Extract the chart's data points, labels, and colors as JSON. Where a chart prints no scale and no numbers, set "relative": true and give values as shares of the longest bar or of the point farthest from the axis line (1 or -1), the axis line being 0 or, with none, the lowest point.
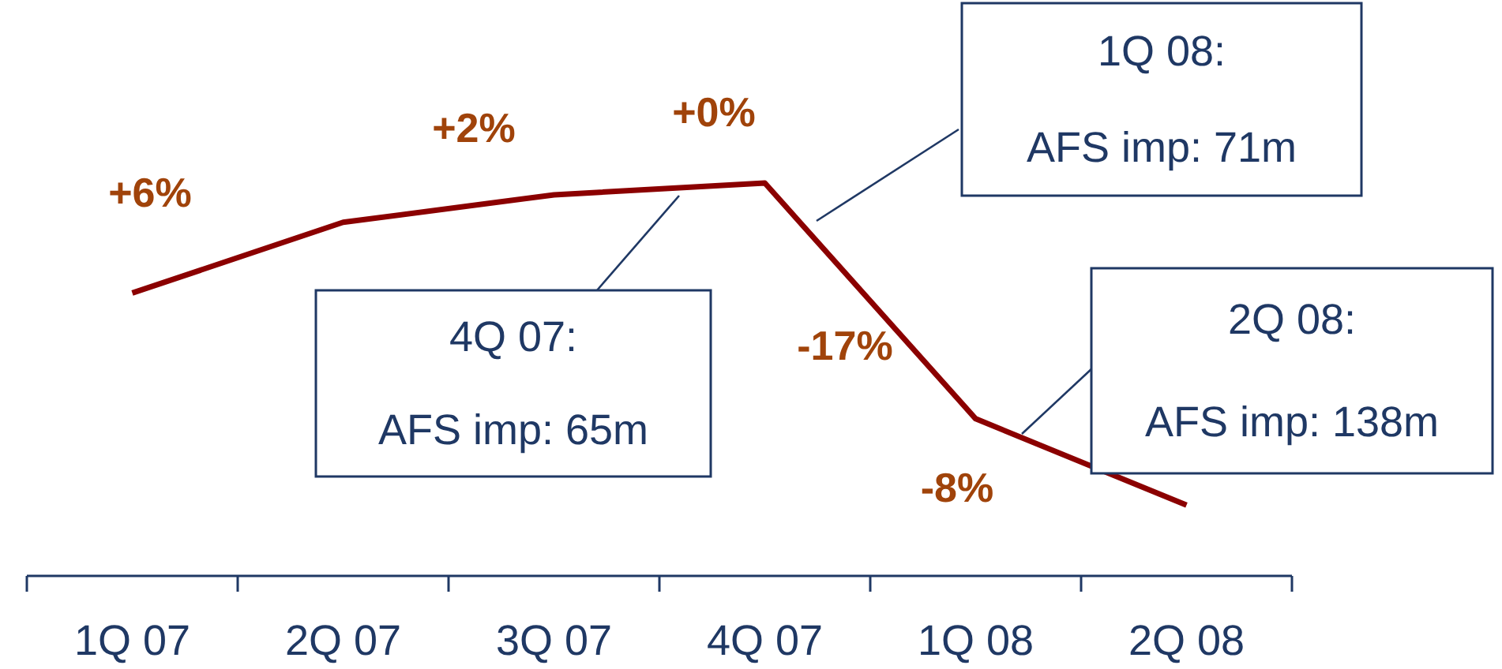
{
  "chart_data": {
    "type": "line",
    "relative": true,
    "categories": [
      "1Q 07",
      "2Q 07",
      "3Q 07",
      "4Q 07",
      "1Q 08",
      "2Q 08"
    ],
    "series": [
      {
        "color": "#8b0000",
        "values": [
          0.72,
          0.9,
          0.97,
          1,
          0.4,
          0.18
        ]
      }
    ],
    "annotations": [
      "+6%",
      "+2%",
      "+0%",
      "-17%",
      "-8%",
      "4Q 07:\nAFS imp: 65m",
      "1Q 08:\nAFS imp: 71m",
      "2Q 08:\nAFS imp: 138m"
    ],
    "tick_labels": "x",
    "marker": "none",
    "line_style": "solid"
  }
}
